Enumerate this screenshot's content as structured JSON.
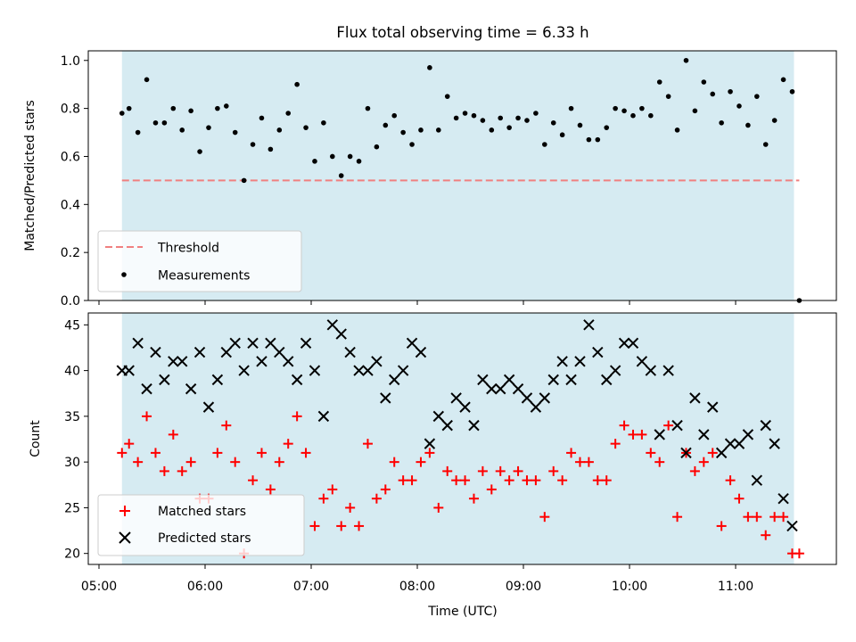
{
  "chart_data": {
    "title": "Flux total observing time = 6.33 h",
    "xlabel": "Time (UTC)",
    "x_ticks": [
      "05:00",
      "06:00",
      "07:00",
      "08:00",
      "09:00",
      "10:00",
      "11:00"
    ],
    "observing_window": {
      "start": "05:13",
      "end": "11:33",
      "color": "#add8e6"
    },
    "colors": {
      "threshold": "#f08080",
      "measurements": "#000000",
      "matched": "#ff0000",
      "predicted": "#000000"
    },
    "panels": [
      {
        "type": "scatter",
        "ylabel": "Matched/Predicted stars",
        "ylim": [
          0.0,
          1.04
        ],
        "y_ticks": [
          "0.0",
          "0.2",
          "0.4",
          "0.6",
          "0.8",
          "1.0"
        ],
        "threshold": {
          "name": "Threshold",
          "y": 0.5,
          "x_range": [
            "05:13",
            "11:36"
          ]
        },
        "legend": {
          "placement": "lower left",
          "entries": [
            "Threshold",
            "Measurements"
          ]
        },
        "series": [
          {
            "name": "Measurements",
            "marker": "dot",
            "x": [
              "05:13",
              "05:17",
              "05:22",
              "05:27",
              "05:32",
              "05:37",
              "05:42",
              "05:47",
              "05:52",
              "05:57",
              "06:02",
              "06:07",
              "06:12",
              "06:17",
              "06:22",
              "06:27",
              "06:32",
              "06:37",
              "06:42",
              "06:47",
              "06:52",
              "06:57",
              "07:02",
              "07:07",
              "07:12",
              "07:17",
              "07:22",
              "07:27",
              "07:32",
              "07:37",
              "07:42",
              "07:47",
              "07:52",
              "07:57",
              "08:02",
              "08:07",
              "08:12",
              "08:17",
              "08:22",
              "08:27",
              "08:32",
              "08:37",
              "08:42",
              "08:47",
              "08:52",
              "08:57",
              "09:02",
              "09:07",
              "09:12",
              "09:17",
              "09:22",
              "09:27",
              "09:32",
              "09:37",
              "09:42",
              "09:47",
              "09:52",
              "09:57",
              "10:02",
              "10:07",
              "10:12",
              "10:17",
              "10:22",
              "10:27",
              "10:32",
              "10:37",
              "10:42",
              "10:47",
              "10:52",
              "10:57",
              "11:02",
              "11:07",
              "11:12",
              "11:17",
              "11:22",
              "11:27",
              "11:32",
              "11:36"
            ],
            "y": [
              0.78,
              0.8,
              0.7,
              0.92,
              0.74,
              0.74,
              0.8,
              0.71,
              0.79,
              0.62,
              0.72,
              0.8,
              0.81,
              0.7,
              0.5,
              0.65,
              0.76,
              0.63,
              0.71,
              0.78,
              0.9,
              0.72,
              0.58,
              0.74,
              0.6,
              0.52,
              0.6,
              0.58,
              0.8,
              0.64,
              0.73,
              0.77,
              0.7,
              0.65,
              0.71,
              0.97,
              0.71,
              0.85,
              0.76,
              0.78,
              0.77,
              0.75,
              0.71,
              0.76,
              0.72,
              0.76,
              0.75,
              0.78,
              0.65,
              0.74,
              0.69,
              0.8,
              0.73,
              0.67,
              0.67,
              0.72,
              0.8,
              0.79,
              0.77,
              0.8,
              0.77,
              0.91,
              0.85,
              0.71,
              1.0,
              0.79,
              0.91,
              0.86,
              0.74,
              0.87,
              0.81,
              0.73,
              0.85,
              0.65,
              0.75,
              0.92,
              0.87,
              0.0
            ]
          }
        ]
      },
      {
        "type": "scatter",
        "ylabel": "Count",
        "ylim": [
          18.8,
          46.3
        ],
        "y_ticks": [
          "20",
          "25",
          "30",
          "35",
          "40",
          "45"
        ],
        "legend": {
          "placement": "lower left",
          "entries": [
            "Matched stars",
            "Predicted stars"
          ]
        },
        "series": [
          {
            "name": "Matched stars",
            "marker": "plus",
            "x": [
              "05:13",
              "05:17",
              "05:22",
              "05:27",
              "05:32",
              "05:37",
              "05:42",
              "05:47",
              "05:52",
              "05:57",
              "06:02",
              "06:07",
              "06:12",
              "06:17",
              "06:22",
              "06:27",
              "06:32",
              "06:37",
              "06:42",
              "06:47",
              "06:52",
              "06:57",
              "07:02",
              "07:07",
              "07:12",
              "07:17",
              "07:22",
              "07:27",
              "07:32",
              "07:37",
              "07:42",
              "07:47",
              "07:52",
              "07:57",
              "08:02",
              "08:07",
              "08:12",
              "08:17",
              "08:22",
              "08:27",
              "08:32",
              "08:37",
              "08:42",
              "08:47",
              "08:52",
              "08:57",
              "09:02",
              "09:07",
              "09:12",
              "09:17",
              "09:22",
              "09:27",
              "09:32",
              "09:37",
              "09:42",
              "09:47",
              "09:52",
              "09:57",
              "10:02",
              "10:07",
              "10:12",
              "10:17",
              "10:22",
              "10:27",
              "10:32",
              "10:37",
              "10:42",
              "10:47",
              "10:52",
              "10:57",
              "11:02",
              "11:07",
              "11:12",
              "11:17",
              "11:22",
              "11:27",
              "11:32",
              "11:36"
            ],
            "y": [
              31,
              32,
              30,
              35,
              31,
              29,
              33,
              29,
              30,
              26,
              26,
              31,
              34,
              30,
              20,
              28,
              31,
              27,
              30,
              32,
              35,
              31,
              23,
              26,
              27,
              23,
              25,
              23,
              32,
              26,
              27,
              30,
              28,
              28,
              30,
              31,
              25,
              29,
              28,
              28,
              26,
              29,
              27,
              29,
              28,
              29,
              28,
              28,
              24,
              29,
              28,
              31,
              30,
              30,
              28,
              28,
              32,
              34,
              33,
              33,
              31,
              30,
              34,
              24,
              31,
              29,
              30,
              31,
              23,
              28,
              26,
              24,
              24,
              22,
              24,
              24,
              20,
              20
            ]
          },
          {
            "name": "Predicted stars",
            "marker": "x",
            "x": [
              "05:13",
              "05:17",
              "05:22",
              "05:27",
              "05:32",
              "05:37",
              "05:42",
              "05:47",
              "05:52",
              "05:57",
              "06:02",
              "06:07",
              "06:12",
              "06:17",
              "06:22",
              "06:27",
              "06:32",
              "06:37",
              "06:42",
              "06:47",
              "06:52",
              "06:57",
              "07:02",
              "07:07",
              "07:12",
              "07:17",
              "07:22",
              "07:27",
              "07:32",
              "07:37",
              "07:42",
              "07:47",
              "07:52",
              "07:57",
              "08:02",
              "08:07",
              "08:12",
              "08:17",
              "08:22",
              "08:27",
              "08:32",
              "08:37",
              "08:42",
              "08:47",
              "08:52",
              "08:57",
              "09:02",
              "09:07",
              "09:12",
              "09:17",
              "09:22",
              "09:27",
              "09:32",
              "09:37",
              "09:42",
              "09:47",
              "09:52",
              "09:57",
              "10:02",
              "10:07",
              "10:12",
              "10:17",
              "10:22",
              "10:27",
              "10:32",
              "10:37",
              "10:42",
              "10:47",
              "10:52",
              "10:57",
              "11:02",
              "11:07",
              "11:12",
              "11:17",
              "11:22",
              "11:27",
              "11:32"
            ],
            "y": [
              40,
              40,
              43,
              38,
              42,
              39,
              41,
              41,
              38,
              42,
              36,
              39,
              42,
              43,
              40,
              43,
              41,
              43,
              42,
              41,
              39,
              43,
              40,
              35,
              45,
              44,
              42,
              40,
              40,
              41,
              37,
              39,
              40,
              43,
              42,
              32,
              35,
              34,
              37,
              36,
              34,
              39,
              38,
              38,
              39,
              38,
              37,
              36,
              37,
              39,
              41,
              39,
              41,
              45,
              42,
              39,
              40,
              43,
              43,
              41,
              40,
              33,
              40,
              34,
              31,
              37,
              33,
              36,
              31,
              32,
              32,
              33,
              28,
              34,
              32,
              26,
              23
            ]
          }
        ]
      }
    ]
  }
}
